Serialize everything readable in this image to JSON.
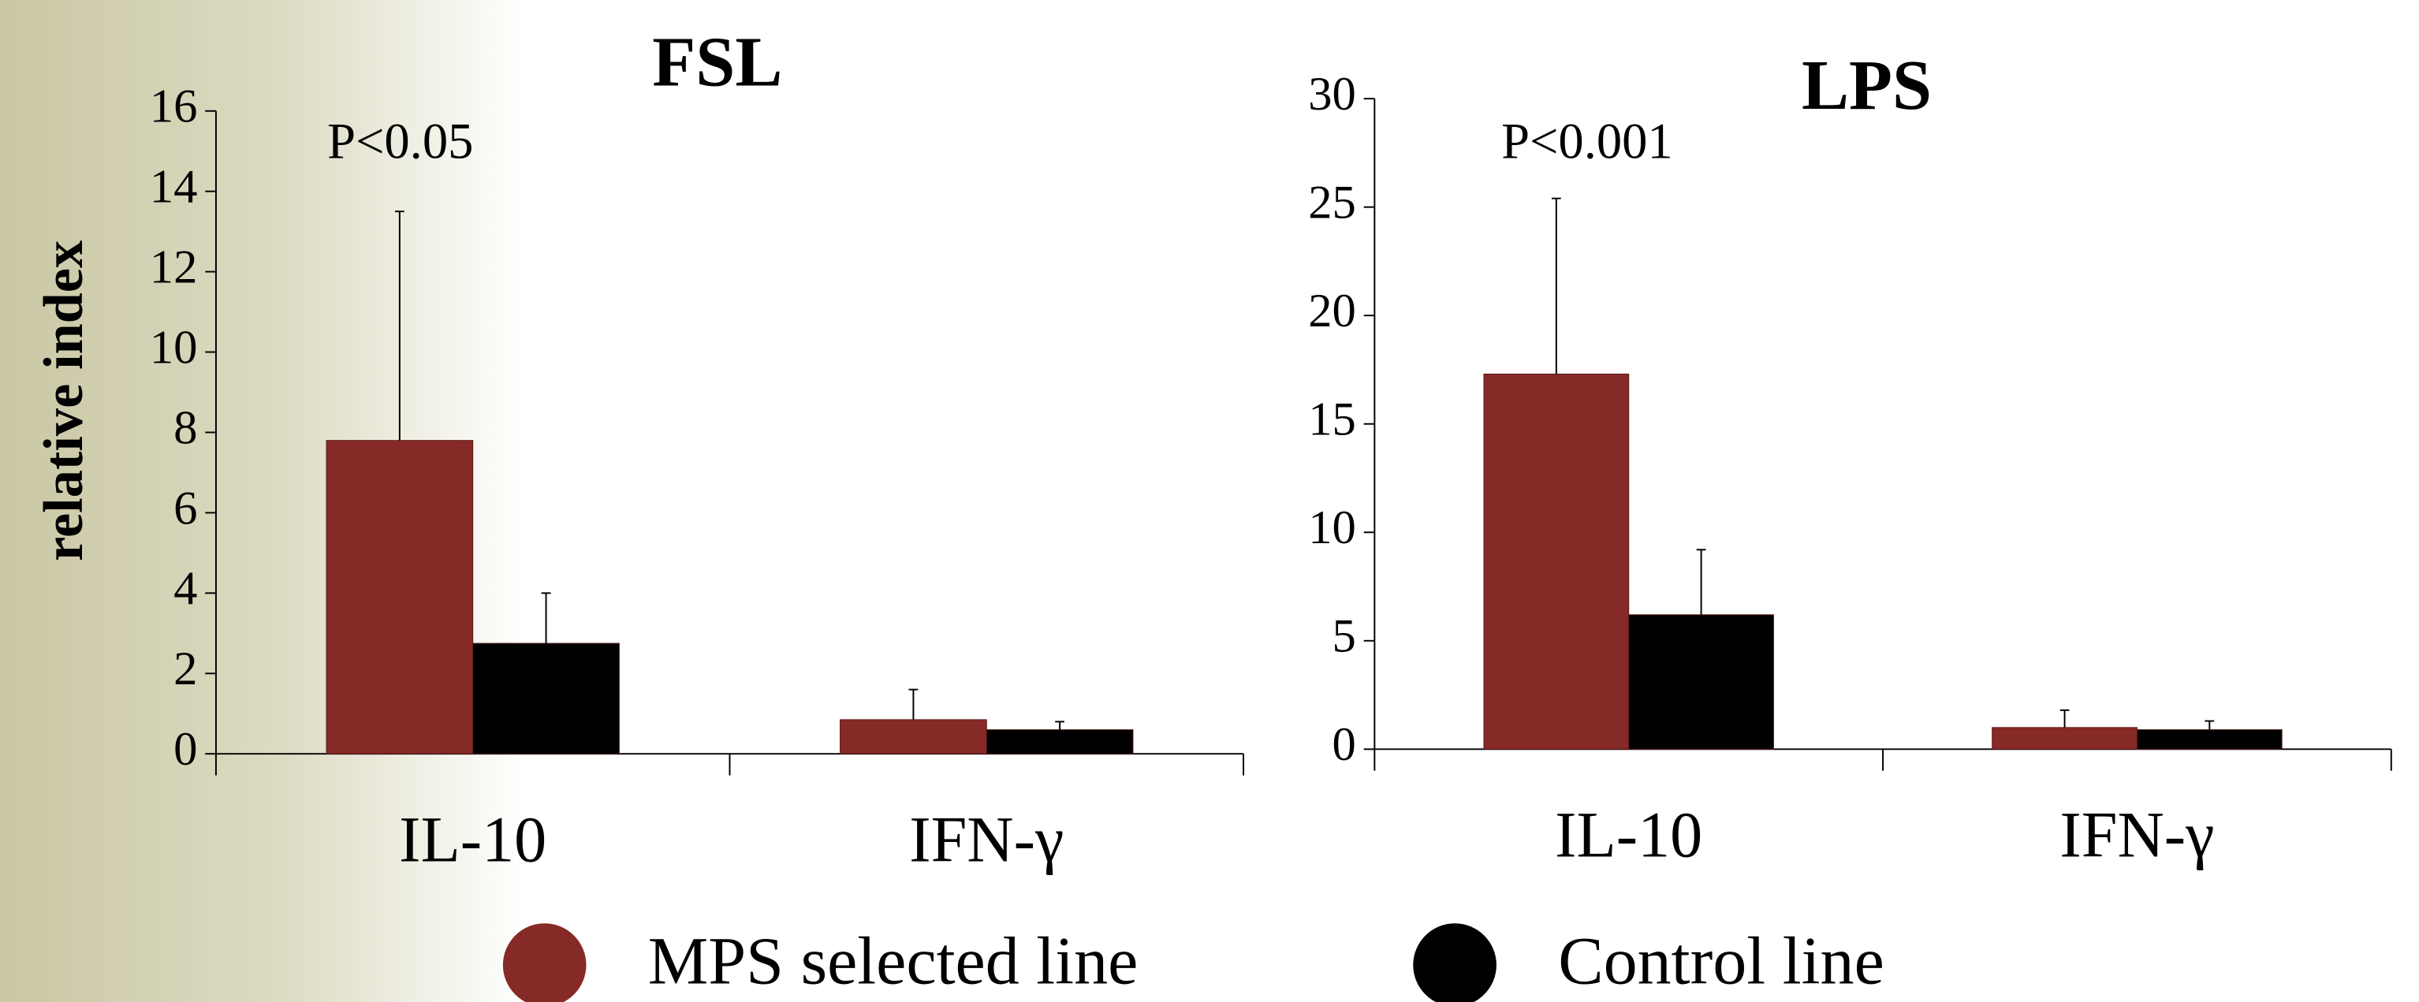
{
  "chart_data": [
    {
      "type": "bar",
      "title": "FSL",
      "y_label": "relative index",
      "annotation": "P<0.05",
      "categories": [
        "IL-10",
        "IFN-γ"
      ],
      "series": [
        {
          "values": [
            7.8,
            0.85
          ],
          "errors": [
            5.7,
            0.75
          ]
        },
        {
          "values": [
            2.75,
            0.6
          ],
          "errors": [
            1.25,
            0.2
          ]
        }
      ],
      "ylim": [
        0,
        16
      ],
      "yticks": [
        0,
        2,
        4,
        6,
        8,
        10,
        12,
        14,
        16
      ]
    },
    {
      "type": "bar",
      "title": "LPS",
      "annotation": "P<0.001",
      "categories": [
        "IL-10",
        "IFN-γ"
      ],
      "series": [
        {
          "values": [
            17.3,
            1.0
          ],
          "errors": [
            8.1,
            0.8
          ]
        },
        {
          "values": [
            6.2,
            0.9
          ],
          "errors": [
            3.0,
            0.4
          ]
        }
      ],
      "ylim": [
        0,
        30
      ],
      "yticks": [
        0,
        5,
        10,
        15,
        20,
        25,
        30
      ]
    }
  ],
  "legend": {
    "entries": [
      {
        "name": "MPS selected line",
        "color": "#862a27"
      },
      {
        "name": "Control line",
        "color": "#000000"
      }
    ]
  }
}
